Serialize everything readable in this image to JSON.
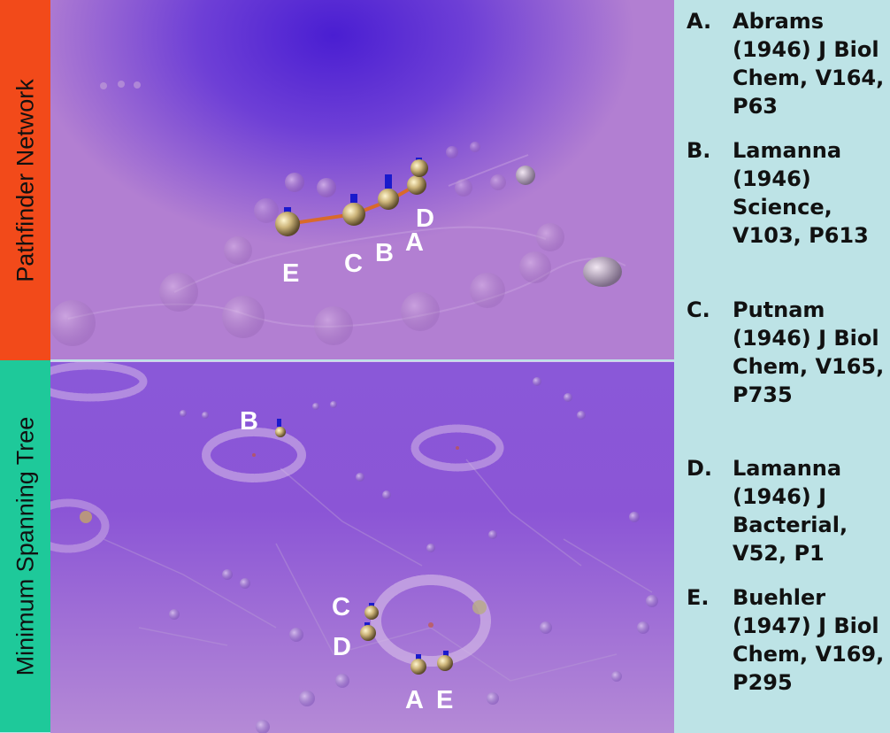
{
  "side_labels": {
    "top": "Pathfinder Network",
    "bottom": "Minimum Spanning Tree"
  },
  "node_labels": {
    "top": [
      "E",
      "C",
      "B",
      "A",
      "D"
    ],
    "bottom": [
      "B",
      "C",
      "D",
      "A",
      "E"
    ]
  },
  "legend": [
    {
      "key": "A.",
      "text": "Abrams (1946) J Biol Chem, V164, P63"
    },
    {
      "key": "B.",
      "text": "Lamanna (1946) Science, V103, P613"
    },
    {
      "key": "C.",
      "text": "Putnam (1946) J Biol Chem, V165, P735"
    },
    {
      "key": "D.",
      "text": "Lamanna (1946) J Bacterial, V52, P1"
    },
    {
      "key": "E.",
      "text": "Buehler (1947) J Biol Chem, V169, P295"
    }
  ],
  "colors": {
    "pathfinder_band": "#f24a1a",
    "mst_band": "#1ec99a",
    "legend_bg": "#bde3e6",
    "node_gold": "#d8c48e",
    "stem_blue": "#1a1acc",
    "edge_orange": "#d96a2a"
  }
}
